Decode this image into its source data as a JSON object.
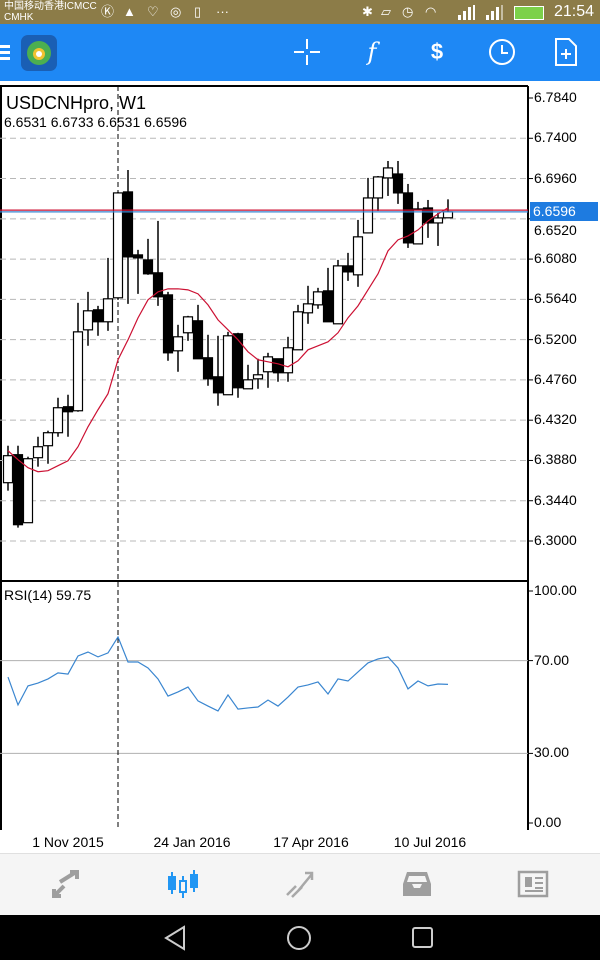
{
  "status_bar": {
    "carrier_line1": "中国移动香港ICMCC",
    "carrier_line2": "CMHK",
    "time": "21:54",
    "more": "···"
  },
  "toolbar": {
    "icons": [
      "menu-icon",
      "app-logo",
      "crosshair-icon",
      "indicators-icon",
      "trade-icon",
      "timeframe-icon",
      "new-order-icon"
    ],
    "indicator_label": "f",
    "trade_label": "$"
  },
  "chart": {
    "symbol_title": "USDCNHpro, W1",
    "ohlc": "6.6531 6.6733 6.6531 6.6596",
    "current_price": "6.6596",
    "price_labels": [
      "6.7840",
      "6.7400",
      "6.6960",
      "6.6520",
      "6.6080",
      "6.5640",
      "6.5200",
      "6.4760",
      "6.4320",
      "6.3880",
      "6.3440",
      "6.3000"
    ],
    "date_labels": [
      "1 Nov 2015",
      "24 Jan 2016",
      "17 Apr 2016",
      "10 Jul 2016"
    ],
    "rsi_title": "RSI(14) 59.75",
    "rsi_labels": [
      "100.00",
      "70.00",
      "30.00",
      "0.00"
    ],
    "colors": {
      "ma": "#cc1133",
      "rsi": "#3a86d0",
      "bid_line": "#3a86d0",
      "ask_line": "#cc1133",
      "price_tag": "#1e7be0"
    }
  },
  "chart_data": {
    "type": "candlestick",
    "symbol": "USDCNHpro",
    "timeframe": "W1",
    "price_range": [
      6.3,
      6.784
    ],
    "ask": 6.6615,
    "bid": 6.6596,
    "candles": [
      [
        6.3637,
        6.4041,
        6.355,
        6.3932
      ],
      [
        6.3943,
        6.4041,
        6.3146,
        6.3178
      ],
      [
        6.32,
        6.3921,
        6.32,
        6.3899
      ],
      [
        6.391,
        6.4139,
        6.3812,
        6.403
      ],
      [
        6.4041,
        6.4205,
        6.3844,
        6.4183
      ],
      [
        6.4183,
        6.4565,
        6.4139,
        6.4456
      ],
      [
        6.4467,
        6.4598,
        6.4139,
        6.4412
      ],
      [
        6.4423,
        6.5602,
        6.4412,
        6.5285
      ],
      [
        6.5307,
        6.5722,
        6.5133,
        6.5515
      ],
      [
        6.5526,
        6.5569,
        6.5242,
        6.5395
      ],
      [
        6.5395,
        6.6093,
        6.5296,
        6.5646
      ],
      [
        6.5657,
        6.6814,
        6.5635,
        6.6803
      ],
      [
        6.6814,
        6.7054,
        6.5591,
        6.6104
      ],
      [
        6.6126,
        6.6181,
        6.57,
        6.6093
      ],
      [
        6.6071,
        6.6301,
        6.5908,
        6.5919
      ],
      [
        6.593,
        6.6497,
        6.5569,
        6.5668
      ],
      [
        6.5689,
        6.5722,
        6.4969,
        6.5056
      ],
      [
        6.5078,
        6.5362,
        6.4849,
        6.5231
      ],
      [
        6.5275,
        6.546,
        6.5187,
        6.5449
      ],
      [
        6.5406,
        6.558,
        6.4991,
        6.4991
      ],
      [
        6.5002,
        6.5253,
        6.4696,
        6.4772
      ],
      [
        6.4794,
        6.5242,
        6.4478,
        6.4619
      ],
      [
        6.4598,
        6.5285,
        6.4598,
        6.5242
      ],
      [
        6.5264,
        6.5275,
        6.4565,
        6.4674
      ],
      [
        6.4663,
        6.4925,
        6.4663,
        6.4761
      ],
      [
        6.4772,
        6.4991,
        6.4663,
        6.4816
      ],
      [
        6.4849,
        6.5056,
        6.4674,
        6.5012
      ],
      [
        6.4991,
        6.4991,
        6.474,
        6.4838
      ],
      [
        6.4838,
        6.5231,
        6.474,
        6.5111
      ],
      [
        6.5089,
        6.558,
        6.5089,
        6.5504
      ],
      [
        6.5493,
        6.5788,
        6.5373,
        6.5591
      ],
      [
        6.558,
        6.5766,
        6.5537,
        6.5722
      ],
      [
        6.5733,
        6.5984,
        6.5395,
        6.5395
      ],
      [
        6.5373,
        6.6071,
        6.5373,
        6.6006
      ],
      [
        6.6006,
        6.6148,
        6.5842,
        6.594
      ],
      [
        6.5908,
        6.6508,
        6.5777,
        6.6323
      ],
      [
        6.6366,
        6.6967,
        6.6366,
        6.6748
      ],
      [
        6.6748,
        6.6988,
        6.6606,
        6.6978
      ],
      [
        6.6967,
        6.7152,
        6.677,
        6.7076
      ],
      [
        6.701,
        6.7152,
        6.6683,
        6.6803
      ],
      [
        6.6803,
        6.6901,
        6.6202,
        6.6257
      ],
      [
        6.6246,
        6.6705,
        6.6246,
        6.6628
      ],
      [
        6.6639,
        6.6726,
        6.6312,
        6.6475
      ],
      [
        6.6475,
        6.6585,
        6.6224,
        6.653
      ],
      [
        6.6531,
        6.6733,
        6.6531,
        6.6596
      ]
    ],
    "ma": [
      6.3986,
      6.3888,
      6.3801,
      6.3757,
      6.3768,
      6.3823,
      6.3877,
      6.403,
      6.4248,
      6.4434,
      6.4609,
      6.498,
      6.5198,
      6.5438,
      6.5635,
      6.5722,
      6.5755,
      6.5755,
      6.5744,
      6.57,
      6.558,
      6.5416,
      6.5307,
      6.5198,
      6.5067,
      6.498,
      6.4958,
      6.4936,
      6.4903,
      6.4969,
      6.5089,
      6.5133,
      6.5176,
      6.5275,
      6.5438,
      6.5569,
      6.5744,
      6.5919,
      6.617,
      6.629,
      6.6333,
      6.6399,
      6.6497,
      6.6574,
      6.6639
    ],
    "rsi": {
      "period": 14,
      "range": [
        0,
        100
      ],
      "levels": [
        70,
        30
      ],
      "values": [
        62.9,
        50.9,
        59.1,
        60.3,
        62.1,
        64.7,
        64.2,
        72.0,
        73.7,
        71.6,
        73.3,
        80.2,
        69.4,
        69.4,
        66.8,
        62.1,
        54.7,
        56.5,
        58.6,
        52.6,
        50.4,
        48.3,
        55.2,
        49.1,
        49.6,
        50.0,
        53.0,
        50.4,
        54.3,
        58.6,
        59.5,
        60.8,
        55.6,
        62.1,
        61.2,
        65.1,
        69.0,
        70.7,
        71.6,
        66.8,
        57.8,
        61.2,
        59.1,
        59.9,
        59.75
      ]
    },
    "crosshair_candle_index": 11
  },
  "bottom_nav": {
    "items": [
      "quotes",
      "chart",
      "trade",
      "history",
      "news"
    ],
    "active": "chart"
  }
}
